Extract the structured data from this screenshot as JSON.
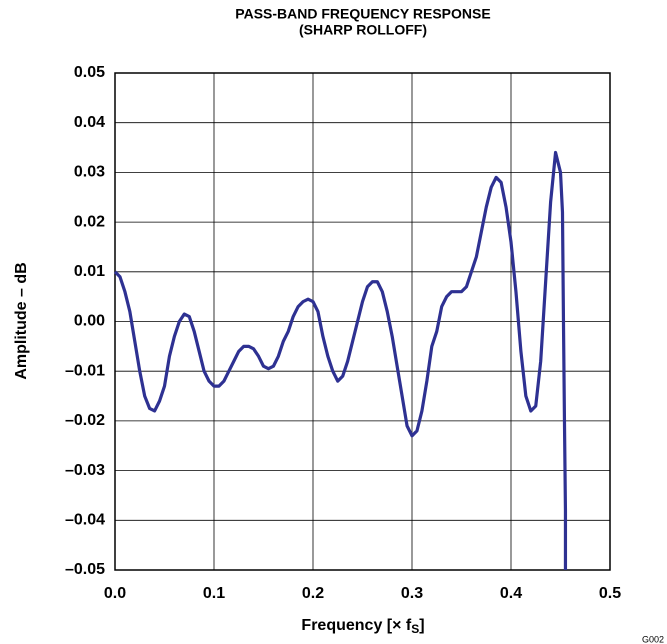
{
  "chart_data": {
    "type": "line",
    "title": "PASS-BAND FREQUENCY RESPONSE",
    "subtitle": "(SHARP ROLLOFF)",
    "xlabel": [
      "Frequency [× f",
      "S",
      "]"
    ],
    "ylabel": "Amplitude – dB",
    "annotation": "G002",
    "x": [
      0,
      0.005,
      0.01,
      0.015,
      0.02,
      0.025,
      0.03,
      0.035,
      0.04,
      0.045,
      0.05,
      0.055,
      0.06,
      0.065,
      0.07,
      0.075,
      0.08,
      0.085,
      0.09,
      0.095,
      0.1,
      0.105,
      0.11,
      0.115,
      0.12,
      0.125,
      0.13,
      0.135,
      0.14,
      0.145,
      0.15,
      0.155,
      0.16,
      0.165,
      0.17,
      0.175,
      0.18,
      0.185,
      0.19,
      0.195,
      0.2,
      0.205,
      0.21,
      0.215,
      0.22,
      0.225,
      0.23,
      0.235,
      0.24,
      0.245,
      0.25,
      0.255,
      0.26,
      0.265,
      0.27,
      0.275,
      0.28,
      0.285,
      0.29,
      0.295,
      0.3,
      0.305,
      0.31,
      0.315,
      0.32,
      0.325,
      0.33,
      0.335,
      0.34,
      0.345,
      0.35,
      0.355,
      0.36,
      0.365,
      0.37,
      0.375,
      0.38,
      0.385,
      0.39,
      0.395,
      0.4,
      0.405,
      0.41,
      0.415,
      0.42,
      0.425,
      0.43,
      0.435,
      0.44,
      0.445,
      0.45,
      0.452,
      0.453,
      0.454,
      0.455,
      0.455
    ],
    "series": [
      {
        "name": "Amplitude",
        "color": "#2e3192",
        "values": [
          0.01,
          0.009,
          0.006,
          0.002,
          -0.004,
          -0.01,
          -0.015,
          -0.0175,
          -0.018,
          -0.016,
          -0.013,
          -0.007,
          -0.003,
          0.0,
          0.0015,
          0.001,
          -0.002,
          -0.006,
          -0.01,
          -0.012,
          -0.013,
          -0.013,
          -0.012,
          -0.01,
          -0.008,
          -0.006,
          -0.005,
          -0.005,
          -0.0055,
          -0.007,
          -0.009,
          -0.0095,
          -0.009,
          -0.007,
          -0.004,
          -0.002,
          0.001,
          0.003,
          0.004,
          0.0045,
          0.004,
          0.002,
          -0.003,
          -0.007,
          -0.01,
          -0.012,
          -0.011,
          -0.008,
          -0.004,
          0.0,
          0.004,
          0.007,
          0.008,
          0.008,
          0.006,
          0.002,
          -0.003,
          -0.009,
          -0.015,
          -0.021,
          -0.023,
          -0.022,
          -0.018,
          -0.012,
          -0.005,
          -0.002,
          0.003,
          0.005,
          0.006,
          0.006,
          0.006,
          0.007,
          0.01,
          0.013,
          0.018,
          0.023,
          0.027,
          0.029,
          0.028,
          0.023,
          0.016,
          0.006,
          -0.006,
          -0.015,
          -0.018,
          -0.017,
          -0.008,
          0.008,
          0.024,
          0.034,
          0.03,
          0.022,
          0.0,
          -0.02,
          -0.038,
          -0.05
        ]
      }
    ],
    "xlim": [
      0,
      0.5
    ],
    "xticks": [
      {
        "value": 0,
        "label": "0.0"
      },
      0.1,
      0.2,
      0.3,
      0.4,
      0.5
    ],
    "ylim": [
      -0.05,
      0.05
    ],
    "yticks": [
      {
        "value": -0.05,
        "label": "–0.05"
      },
      {
        "value": -0.04,
        "label": "–0.04"
      },
      {
        "value": -0.03,
        "label": "–0.03"
      },
      {
        "value": -0.02,
        "label": "–0.02"
      },
      {
        "value": -0.01,
        "label": "–0.01"
      },
      {
        "value": 0,
        "label": "0.00"
      },
      0.01,
      0.02,
      0.03,
      0.04,
      0.05
    ],
    "grid": true
  }
}
